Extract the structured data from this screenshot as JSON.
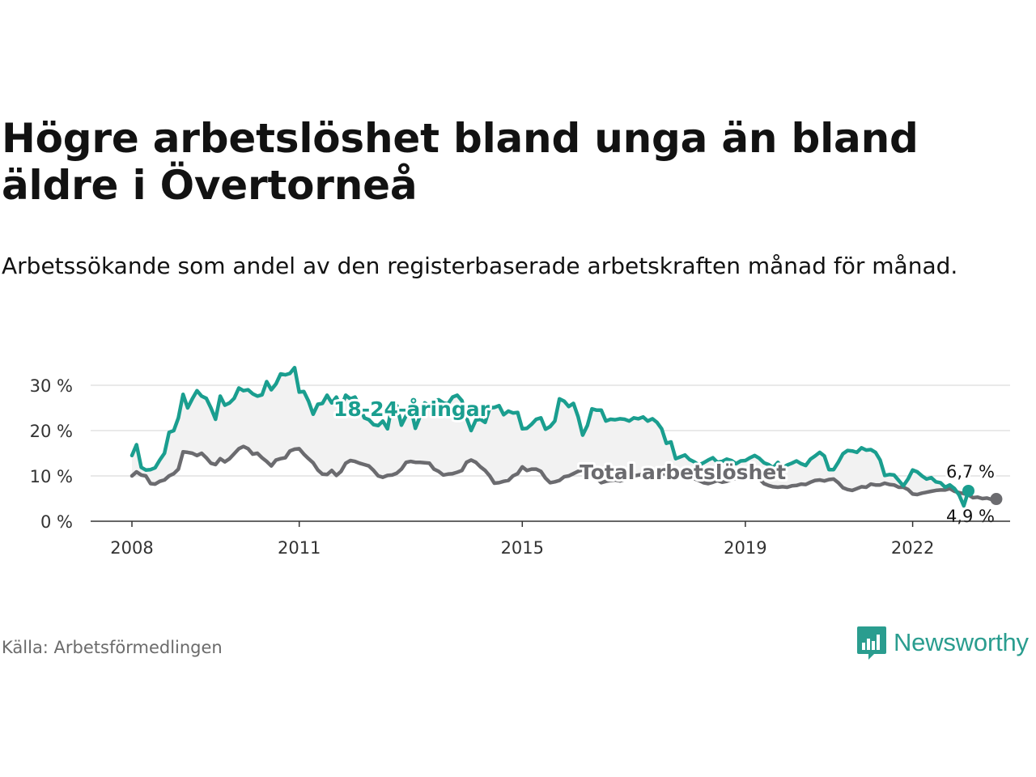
{
  "title": "Högre arbetslöshet bland unga än bland äldre i Övertorneå",
  "subtitle": "Arbetssökande som andel av den registerbaserade arbetskraften månad för månad.",
  "source": "Källa: Arbetsförmedlingen",
  "brand": {
    "name": "Newsworthy",
    "logo_icon": "bar-chart-speech-bubble-icon",
    "color": "#2a9d8f"
  },
  "colors": {
    "youth": "#1a9e8f",
    "total": "#6b6b6f",
    "band": "#f2f2f2",
    "grid": "#dcdcdc",
    "axis": "#333333"
  },
  "chart_data": {
    "type": "line",
    "title": "Högre arbetslöshet bland unga än bland äldre i Övertorneå",
    "xlabel": "",
    "ylabel": "",
    "ylim": [
      0,
      30
    ],
    "yticks": [
      0,
      10,
      20,
      30
    ],
    "ytick_labels": [
      "0 %",
      "10 %",
      "20 %",
      "30 %"
    ],
    "xticks": [
      2008,
      2011,
      2015,
      2019,
      2022
    ],
    "xtick_labels": [
      "2008",
      "2011",
      "2015",
      "2019",
      "2022"
    ],
    "x_start": 2008.0,
    "x_step": 0.0833333,
    "grid": true,
    "legend": "inline labels",
    "series": [
      {
        "name": "18-24-åringar",
        "color": "#1a9e8f",
        "label": "18-24-åringar",
        "end_label": "6,7 %",
        "values": [
          14.5,
          16.9,
          11.9,
          11.3,
          11.4,
          11.8,
          13.5,
          15.0,
          19.6,
          20.0,
          22.8,
          28.0,
          25.0,
          27.0,
          28.8,
          27.6,
          27.1,
          25.0,
          22.5,
          27.6,
          25.6,
          26.1,
          27.1,
          29.4,
          28.8,
          29.0,
          28.1,
          27.6,
          27.9,
          30.8,
          29.0,
          30.3,
          32.5,
          32.3,
          32.6,
          33.9,
          28.5,
          28.6,
          26.5,
          23.6,
          25.8,
          26.0,
          27.8,
          26.1,
          27.4,
          25.0,
          27.8,
          27.0,
          27.4,
          25.4,
          22.8,
          22.4,
          21.3,
          21.1,
          22.1,
          20.4,
          25.8,
          25.5,
          21.2,
          23.3,
          25.0,
          20.5,
          23.1,
          26.1,
          25.5,
          26.6,
          26.8,
          26.1,
          25.9,
          27.4,
          27.8,
          26.6,
          22.8,
          20.0,
          22.3,
          22.5,
          21.8,
          25.0,
          25.1,
          25.5,
          23.5,
          24.3,
          23.9,
          24.0,
          20.4,
          20.5,
          21.4,
          22.5,
          22.8,
          20.3,
          20.9,
          22.1,
          27.0,
          26.5,
          25.3,
          26.0,
          23.1,
          19.0,
          21.1,
          24.8,
          24.5,
          24.5,
          22.1,
          22.5,
          22.4,
          22.6,
          22.5,
          22.1,
          22.8,
          22.6,
          23.0,
          22.1,
          22.6,
          21.8,
          20.4,
          17.2,
          17.5,
          13.8,
          14.2,
          14.6,
          13.6,
          13.1,
          12.4,
          12.9,
          13.5,
          14.0,
          13.0,
          13.2,
          13.7,
          13.4,
          12.7,
          13.3,
          13.4,
          14.0,
          14.5,
          13.9,
          12.9,
          12.5,
          11.8,
          13.0,
          11.8,
          12.4,
          12.8,
          13.3,
          12.7,
          12.3,
          13.7,
          14.4,
          15.2,
          14.4,
          11.4,
          11.4,
          13.0,
          14.9,
          15.6,
          15.5,
          15.2,
          16.2,
          15.7,
          15.8,
          15.2,
          13.5,
          10.1,
          10.3,
          10.2,
          9.0,
          7.8,
          9.3,
          11.3,
          10.9,
          10.0,
          9.3,
          9.6,
          8.7,
          8.5,
          7.5,
          8.0,
          7.2,
          5.8,
          3.4,
          6.7
        ]
      },
      {
        "name": "Total arbetslöshet",
        "color": "#6b6b6f",
        "label": "Total arbetslöshet",
        "end_label": "4,9 %",
        "values": [
          10.0,
          10.9,
          10.2,
          10.0,
          8.3,
          8.2,
          8.8,
          9.1,
          10.0,
          10.5,
          11.5,
          15.3,
          15.2,
          15.0,
          14.5,
          15.0,
          14.0,
          12.8,
          12.5,
          13.8,
          13.1,
          13.8,
          14.9,
          16.0,
          16.5,
          16.0,
          14.8,
          15.0,
          14.0,
          13.2,
          12.2,
          13.5,
          13.8,
          14.0,
          15.5,
          15.9,
          16.0,
          14.8,
          13.8,
          12.9,
          11.3,
          10.4,
          10.3,
          11.2,
          10.1,
          11.0,
          12.8,
          13.4,
          13.2,
          12.8,
          12.5,
          12.2,
          11.2,
          10.0,
          9.7,
          10.1,
          10.2,
          10.6,
          11.5,
          13.0,
          13.2,
          13.0,
          13.0,
          12.9,
          12.8,
          11.5,
          11.0,
          10.2,
          10.4,
          10.5,
          10.8,
          11.2,
          13.0,
          13.5,
          13.0,
          12.0,
          11.2,
          10.0,
          8.4,
          8.5,
          8.8,
          9.0,
          10.0,
          10.5,
          12.0,
          11.2,
          11.5,
          11.5,
          11.0,
          9.5,
          8.5,
          8.7,
          9.0,
          9.8,
          10.0,
          10.5,
          11.0,
          11.3,
          10.8,
          9.8,
          9.5,
          8.5,
          8.8,
          9.0,
          9.1,
          8.9,
          9.2,
          9.5,
          10.0,
          10.2,
          10.3,
          11.0,
          11.5,
          10.8,
          10.5,
          10.4,
          11.6,
          11.0,
          10.6,
          10.3,
          9.9,
          9.4,
          9.0,
          8.5,
          8.3,
          8.6,
          9.0,
          8.6,
          8.8,
          9.2,
          9.5,
          9.4,
          9.3,
          9.7,
          9.6,
          9.4,
          8.3,
          7.9,
          7.6,
          7.5,
          7.6,
          7.5,
          7.8,
          7.9,
          8.2,
          8.1,
          8.6,
          9.0,
          9.1,
          8.9,
          9.2,
          9.3,
          8.5,
          7.4,
          7.0,
          6.8,
          7.2,
          7.6,
          7.5,
          8.2,
          8.0,
          8.0,
          8.4,
          8.1,
          8.0,
          7.5,
          7.5,
          7.0,
          6.0,
          5.9,
          6.2,
          6.4,
          6.6,
          6.8,
          6.9,
          6.9,
          7.2,
          6.6,
          6.3,
          6.1,
          5.8,
          5.2,
          5.3,
          5.0,
          5.1,
          4.8,
          4.9
        ]
      }
    ]
  }
}
